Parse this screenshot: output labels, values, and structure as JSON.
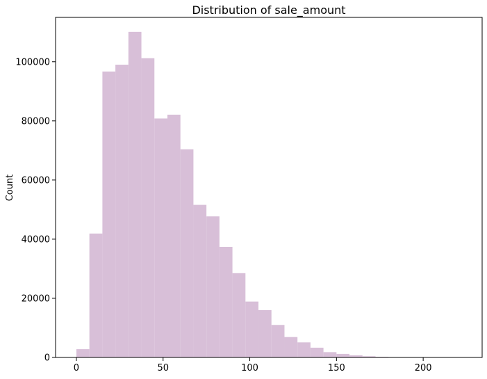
{
  "chart_data": {
    "type": "bar",
    "title": "Distribution of sale_amount",
    "xlabel": "",
    "ylabel": "Count",
    "xlim": [
      -12,
      234
    ],
    "ylim": [
      0,
      115000
    ],
    "grid": false,
    "legend": "none",
    "bar_color": "#d8bfd8",
    "xticks": [
      0,
      50,
      100,
      150,
      200
    ],
    "xtick_labels": [
      "0",
      "50",
      "100",
      "150",
      "200"
    ],
    "yticks": [
      0,
      20000,
      40000,
      60000,
      80000,
      100000
    ],
    "ytick_labels": [
      "0",
      "20000",
      "40000",
      "60000",
      "80000",
      "100000"
    ],
    "bin_width": 7.5,
    "bins": [
      {
        "x0": 0,
        "x1": 7.5,
        "count": 2800
      },
      {
        "x0": 7.5,
        "x1": 15,
        "count": 41900
      },
      {
        "x0": 15,
        "x1": 22.5,
        "count": 96700
      },
      {
        "x0": 22.5,
        "x1": 30,
        "count": 99000
      },
      {
        "x0": 30,
        "x1": 37.5,
        "count": 110100
      },
      {
        "x0": 37.5,
        "x1": 45,
        "count": 101200
      },
      {
        "x0": 45,
        "x1": 52.5,
        "count": 80800
      },
      {
        "x0": 52.5,
        "x1": 60,
        "count": 82100
      },
      {
        "x0": 60,
        "x1": 67.5,
        "count": 70400
      },
      {
        "x0": 67.5,
        "x1": 75,
        "count": 51600
      },
      {
        "x0": 75,
        "x1": 82.5,
        "count": 47700
      },
      {
        "x0": 82.5,
        "x1": 90,
        "count": 37400
      },
      {
        "x0": 90,
        "x1": 97.5,
        "count": 28500
      },
      {
        "x0": 97.5,
        "x1": 105,
        "count": 18900
      },
      {
        "x0": 105,
        "x1": 112.5,
        "count": 16000
      },
      {
        "x0": 112.5,
        "x1": 120,
        "count": 11000
      },
      {
        "x0": 120,
        "x1": 127.5,
        "count": 6900
      },
      {
        "x0": 127.5,
        "x1": 135,
        "count": 5100
      },
      {
        "x0": 135,
        "x1": 142.5,
        "count": 3300
      },
      {
        "x0": 142.5,
        "x1": 150,
        "count": 1800
      },
      {
        "x0": 150,
        "x1": 157.5,
        "count": 1200
      },
      {
        "x0": 157.5,
        "x1": 165,
        "count": 700
      },
      {
        "x0": 165,
        "x1": 172.5,
        "count": 400
      },
      {
        "x0": 172.5,
        "x1": 180,
        "count": 200
      },
      {
        "x0": 180,
        "x1": 187.5,
        "count": 100
      },
      {
        "x0": 187.5,
        "x1": 195,
        "count": 60
      },
      {
        "x0": 195,
        "x1": 202.5,
        "count": 30
      },
      {
        "x0": 202.5,
        "x1": 210,
        "count": 15
      },
      {
        "x0": 210,
        "x1": 217.5,
        "count": 8
      },
      {
        "x0": 217.5,
        "x1": 225,
        "count": 4
      }
    ]
  }
}
